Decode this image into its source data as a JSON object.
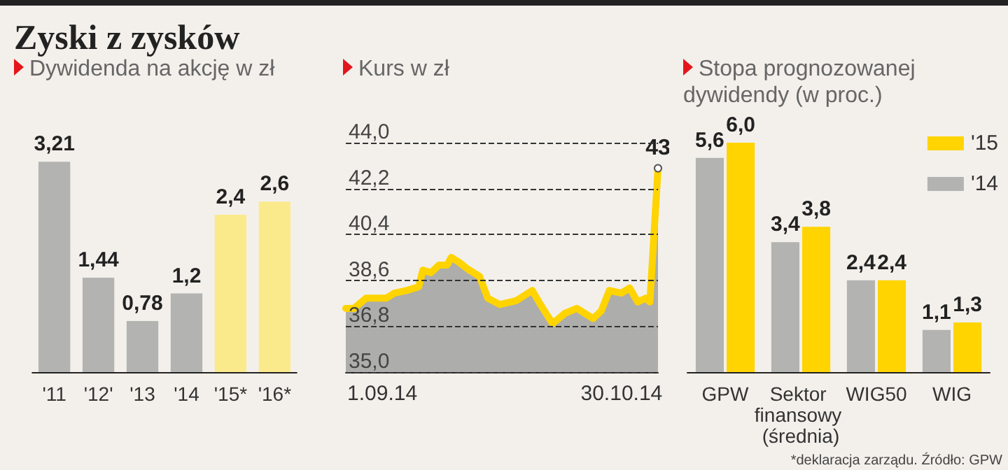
{
  "chart_data": [
    {
      "type": "bar",
      "title": "Zyski z zysków",
      "subtitle": "Dywidenda na akcję w zł",
      "categories": [
        "'11",
        "'12'",
        "'13",
        "'14",
        "'15*",
        "'16*"
      ],
      "values": [
        3.21,
        1.44,
        0.78,
        1.2,
        2.4,
        2.6
      ],
      "colors": [
        "#b3b3b1",
        "#b3b3b1",
        "#b3b3b1",
        "#b3b3b1",
        "#fbea8c",
        "#fbea8c"
      ],
      "value_labels": [
        "3,21",
        "1,44",
        "0,78",
        "1,2",
        "2,4",
        "2,6"
      ]
    },
    {
      "type": "area",
      "title": "Kurs w zł",
      "x": [
        "2014-08-23",
        "2014-08-25",
        "2014-08-28",
        "2014-09-02",
        "2014-09-04",
        "2014-09-07",
        "2014-09-10",
        "2014-09-11",
        "2014-09-13",
        "2014-09-15",
        "2014-09-17",
        "2014-09-18",
        "2014-09-20",
        "2014-09-22",
        "2014-09-25",
        "2014-09-27",
        "2014-09-30",
        "2014-10-04",
        "2014-10-08",
        "2014-10-10",
        "2014-10-13",
        "2014-10-16",
        "2014-10-19",
        "2014-10-21",
        "2014-10-23",
        "2014-10-25",
        "2014-10-27",
        "2014-10-30",
        "2014-11-01",
        "2014-11-03",
        "2014-11-05",
        "2014-11-06",
        "2014-11-08"
      ],
      "series": [
        {
          "color": "#ffd400",
          "values": [
            37.5,
            37.5,
            37.9,
            37.9,
            38.1,
            38.2,
            38.35,
            39.0,
            38.9,
            39.2,
            39.2,
            39.5,
            39.3,
            39.05,
            38.75,
            37.9,
            37.65,
            37.8,
            38.2,
            37.65,
            36.9,
            37.3,
            37.5,
            37.3,
            37.1,
            37.4,
            38.2,
            38.1,
            38.3,
            37.75,
            37.9,
            37.75,
            43.0
          ]
        }
      ],
      "xlim": [
        "2014-08-23",
        "2014-11-08"
      ],
      "xticks": [
        {
          "value": "2014-09-01",
          "label": "1.09.14"
        },
        {
          "value": "2014-10-30",
          "label": "30.10.14"
        }
      ],
      "ylim": [
        35,
        44
      ],
      "yticks": [
        {
          "value": 35,
          "label": "35,0"
        },
        {
          "value": 36.8,
          "label": "36,8"
        },
        {
          "value": 38.6,
          "label": "38,6"
        },
        {
          "value": 40.4,
          "label": "40,4"
        },
        {
          "value": 42.2,
          "label": "42,2"
        },
        {
          "value": 44,
          "label": "44,0"
        }
      ],
      "grid": "y",
      "annotations": [
        {
          "text": "43",
          "x": "2014-11-08",
          "y": 43
        }
      ]
    },
    {
      "type": "bar",
      "title": "Stopa prognozowanej dywidendy (w proc.)",
      "categories": [
        "GPW",
        "Sektor finansowy (średnia)",
        "WIG50",
        "WIG"
      ],
      "series": [
        {
          "name": "'14",
          "color": "#b3b3b1",
          "values": [
            5.6,
            3.4,
            2.4,
            1.1
          ],
          "value_labels": [
            "5,6",
            "3,4",
            "2,4",
            "1,1"
          ]
        },
        {
          "name": "'15",
          "color": "#ffd400",
          "values": [
            6.0,
            3.8,
            2.4,
            1.3
          ],
          "value_labels": [
            "6,0",
            "3,8",
            "2,4",
            "1,3"
          ]
        }
      ],
      "legend": "top right",
      "annotations": [
        "*deklaracja zarządu. Źródło: GPW"
      ]
    }
  ]
}
